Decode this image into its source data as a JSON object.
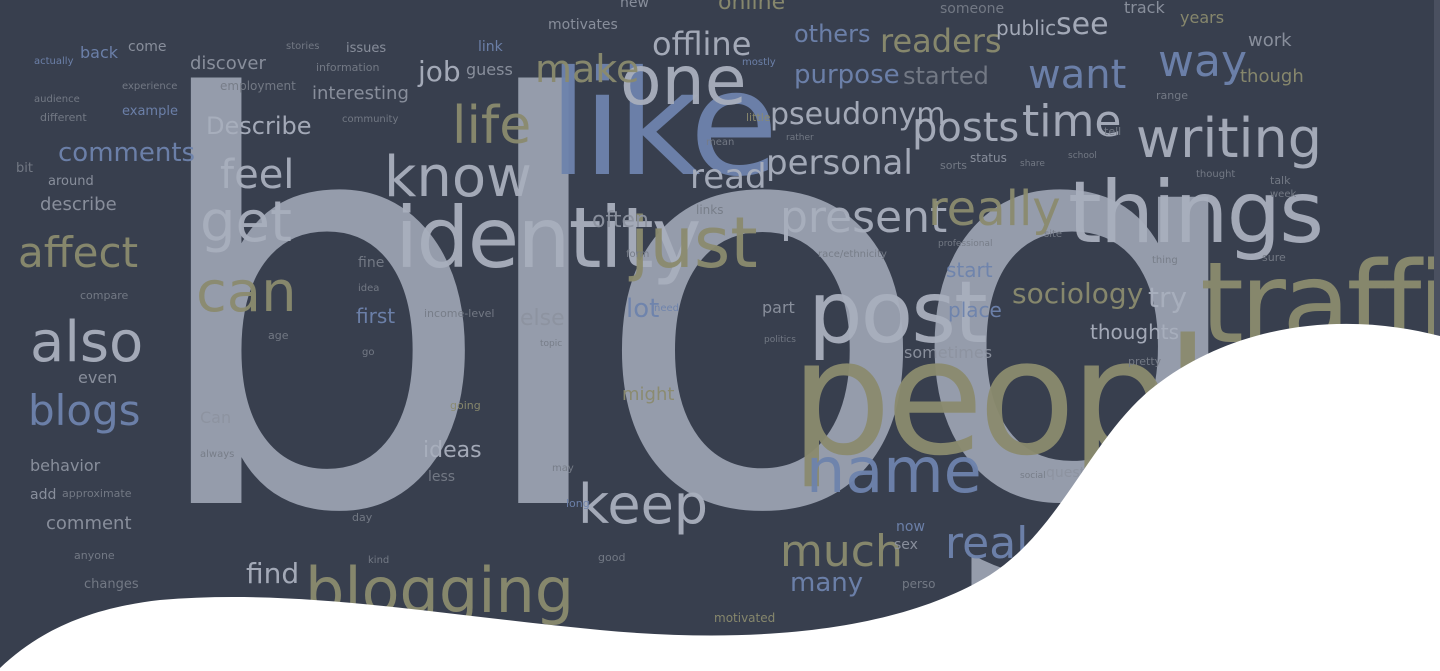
{
  "hero": {
    "background_color": "#383f4e",
    "wave_color": "#ffffff",
    "word_colors": {
      "blue": "#6e83ad",
      "tan": "#8b8b6e",
      "gray": "#a9afbd",
      "gray2": "#8d93a0",
      "dim": "#767c87"
    },
    "word_cloud": {
      "blog": "blog",
      "people": "people",
      "like": "like",
      "traffic": "traffic",
      "identity": "identity",
      "things": "things",
      "post": "post",
      "one": "one",
      "know": "know",
      "writing": "writing",
      "blogging": "blogging",
      "just": "just",
      "name": "name",
      "keep": "keep",
      "also": "also",
      "get": "get",
      "can": "can",
      "life": "life",
      "present": "present",
      "really": "really",
      "time": "time",
      "posts": "posts",
      "way": "way",
      "want": "want",
      "personal": "personal",
      "read": "read",
      "much": "much",
      "real": "real",
      "blogs": "blogs",
      "affect": "affect",
      "feel": "feel",
      "comments": "comments",
      "make": "make",
      "offline": "offline",
      "readers": "readers",
      "see": "see",
      "pseudonym": "pseudonym",
      "purpose": "purpose",
      "started": "started",
      "others": "others",
      "public": "public",
      "sociology": "sociology",
      "try": "try",
      "thoughts": "thoughts",
      "start": "start",
      "place": "place",
      "find": "find",
      "ideas": "ideas",
      "less": "less",
      "might": "might",
      "often": "often",
      "lot": "lot",
      "else": "else",
      "first": "first",
      "fine": "fine",
      "describe": "describe",
      "Describe": "Describe",
      "interesting": "interesting",
      "job": "job",
      "guess": "guess",
      "discover": "discover",
      "back": "back",
      "come": "come",
      "example": "example",
      "behavior": "behavior",
      "add": "add",
      "approximate": "approximate",
      "comment": "comment",
      "changes": "changes",
      "anyone": "anyone",
      "even": "even",
      "compare": "compare",
      "around": "around",
      "bit": "bit",
      "different": "different",
      "audience": "audience",
      "actually": "actually",
      "experience": "experience",
      "employment": "employment",
      "community": "community",
      "information": "information",
      "issues": "issues",
      "stories": "stories",
      "link": "link",
      "motivates": "motivates",
      "new": "new",
      "online": "online",
      "someone": "someone",
      "track": "track",
      "years": "years",
      "work": "work",
      "though": "though",
      "range": "range",
      "tell": "tell",
      "thought": "thought",
      "talk": "talk",
      "week": "week",
      "sure": "sure",
      "status": "status",
      "sorts": "sorts",
      "share": "share",
      "school": "school",
      "professional": "professional",
      "race/ethnicity": "race/ethnicity",
      "site": "site",
      "thing": "thing",
      "part": "part",
      "politics": "politics",
      "sometimes": "sometimes",
      "pretty": "pretty",
      "question": "questi",
      "social": "social",
      "now": "now",
      "sex": "sex",
      "many": "many",
      "person": "perso",
      "motivated": "motivated",
      "good": "good",
      "kind": "kind",
      "day": "day",
      "long": "long",
      "may": "may",
      "going": "going",
      "always": "always",
      "Can": "Can",
      "age": "age",
      "go": "go",
      "idea": "idea",
      "income-level": "income-level",
      "need": "need",
      "links": "links",
      "little": "little",
      "mean": "mean",
      "mostly": "mostly",
      "rather": "rather",
      "topic": "topic",
      "form": "form"
    }
  }
}
